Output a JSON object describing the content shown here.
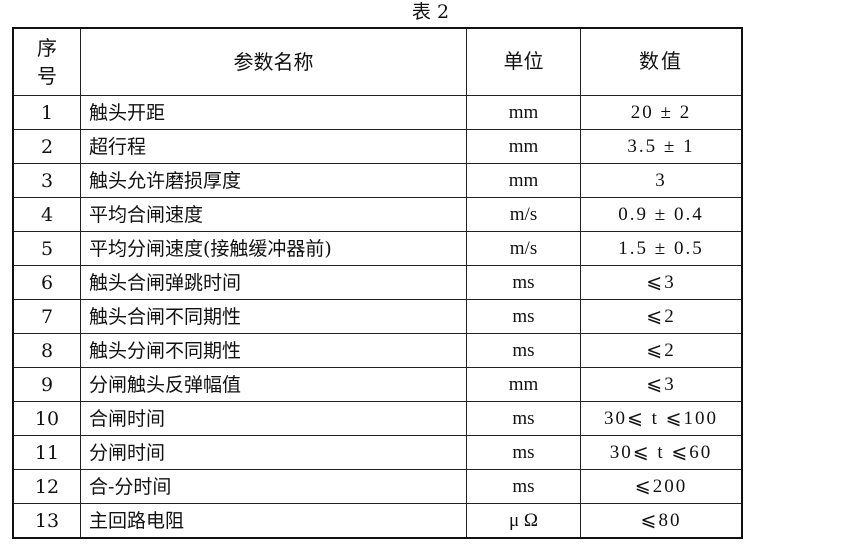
{
  "caption": "表 2",
  "headers": {
    "seq": "序号",
    "name": "参数名称",
    "unit": "单位",
    "value": "数值"
  },
  "rows": [
    {
      "seq": "1",
      "name": "触头开距",
      "unit": "mm",
      "value": "20 ± 2"
    },
    {
      "seq": "2",
      "name": "超行程",
      "unit": "mm",
      "value": "3.5 ± 1"
    },
    {
      "seq": "3",
      "name": "触头允许磨损厚度",
      "unit": "mm",
      "value": "3"
    },
    {
      "seq": "4",
      "name": "平均合闸速度",
      "unit": "m/s",
      "value": "0.9 ± 0.4"
    },
    {
      "seq": "5",
      "name": "平均分闸速度(接触缓冲器前)",
      "unit": "m/s",
      "value": "1.5 ± 0.5"
    },
    {
      "seq": "6",
      "name": "触头合闸弹跳时间",
      "unit": "ms",
      "value": "⩽3"
    },
    {
      "seq": "7",
      "name": "触头合闸不同期性",
      "unit": "ms",
      "value": "⩽2"
    },
    {
      "seq": "8",
      "name": "触头分闸不同期性",
      "unit": "ms",
      "value": "⩽2"
    },
    {
      "seq": "9",
      "name": "分闸触头反弹幅值",
      "unit": "mm",
      "value": "⩽3"
    },
    {
      "seq": "10",
      "name": "合闸时间",
      "unit": "ms",
      "value": "30⩽ t ⩽100"
    },
    {
      "seq": "11",
      "name": "分闸时间",
      "unit": "ms",
      "value": "30⩽ t ⩽60"
    },
    {
      "seq": "12",
      "name": "合-分时间",
      "unit": "ms",
      "value": "⩽200"
    },
    {
      "seq": "13",
      "name": "主回路电阻",
      "unit": "μ Ω",
      "value": "⩽80"
    }
  ]
}
